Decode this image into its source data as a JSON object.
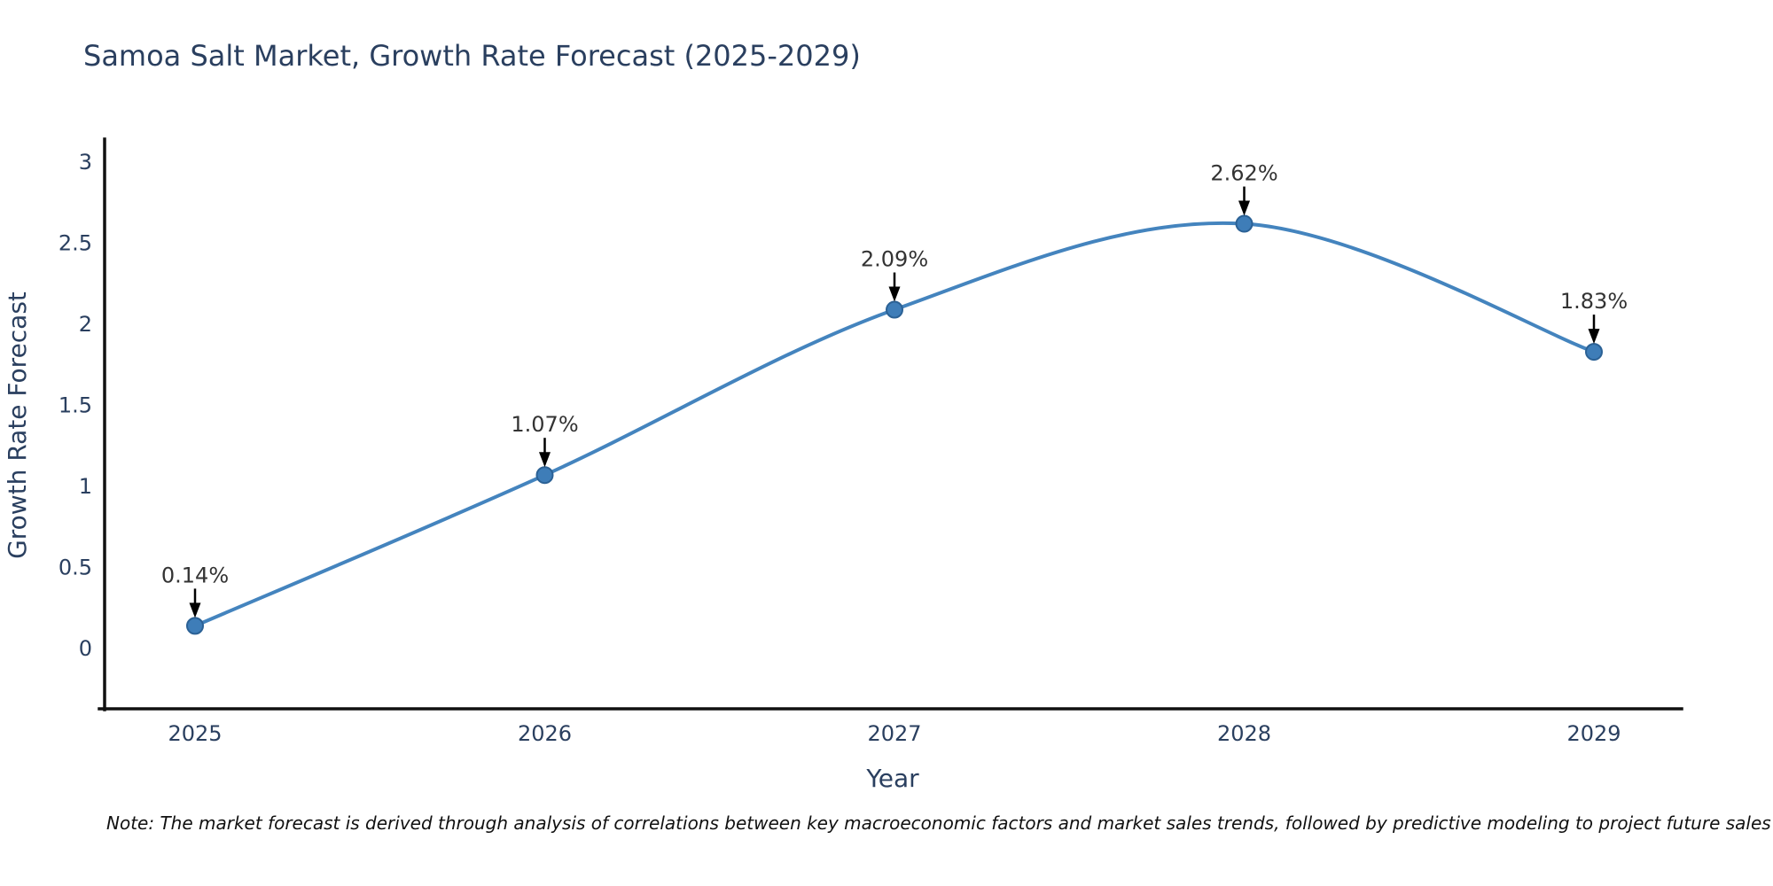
{
  "title": "Samoa Salt Market, Growth Rate Forecast (2025-2029)",
  "footnote": "Note: The market forecast is derived through analysis of correlations between key macroeconomic factors and market sales trends, followed by predictive modeling to project future sales",
  "chart_data": {
    "type": "line",
    "title": "Samoa Salt Market, Growth Rate Forecast (2025-2029)",
    "xlabel": "Year",
    "ylabel": "Growth Rate Forecast",
    "categories": [
      "2025",
      "2026",
      "2027",
      "2028",
      "2029"
    ],
    "values": [
      0.14,
      1.07,
      2.09,
      2.62,
      1.83
    ],
    "point_labels": [
      "0.14%",
      "1.07%",
      "2.09%",
      "2.62%",
      "1.83%"
    ],
    "yticks": [
      0,
      0.5,
      1,
      1.5,
      2,
      2.5,
      3
    ],
    "ytick_labels": [
      "0",
      "0.5",
      "1",
      "1.5",
      "2",
      "2.5",
      "3"
    ],
    "ylim": [
      -0.37,
      3.13
    ],
    "line_shape": "spline",
    "grid": false,
    "legend": "none",
    "annotation_style": "arrow-down-to-point",
    "colors": {
      "line": "#4484be",
      "marker_fill": "#3e7db8",
      "marker_edge": "#2b6195",
      "axis_line": "#111111",
      "tick_text": "#2a3f5f",
      "title_text": "#2a3f5f",
      "annotation_text": "#333333",
      "footnote_text": "#111111",
      "background": "#ffffff"
    }
  }
}
